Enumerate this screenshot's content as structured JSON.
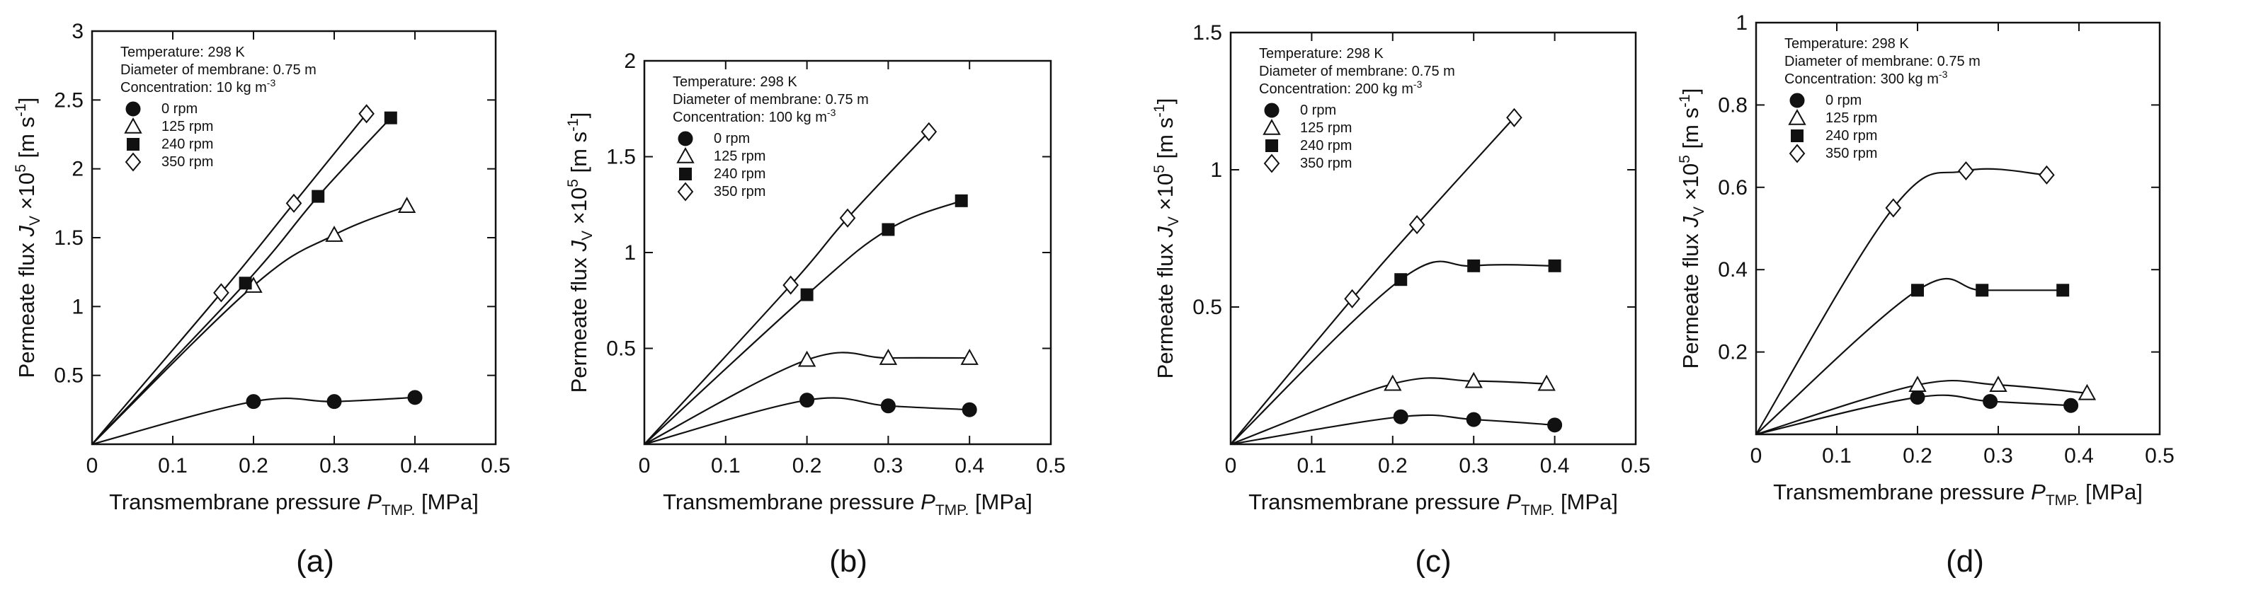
{
  "chart_data": [
    {
      "type": "line",
      "panel_label": "(a)",
      "xlabel_main": "Transmembrane pressure ",
      "xlabel_symbol": "P",
      "xlabel_sub": "TMP.",
      "xlabel_unit": " [MPa]",
      "ylabel": "Permeate flux J_V ×10^5 [m s^-1]",
      "xlim": [
        0,
        0.5
      ],
      "ylim": [
        0,
        3
      ],
      "xticks": [
        "0",
        "0.1",
        "0.2",
        "0.3",
        "0.4",
        "0.5"
      ],
      "yticks": [
        "0.5",
        "1",
        "1.5",
        "2",
        "2.5",
        "3"
      ],
      "info": {
        "temperature": "Temperature: 298 K",
        "diameter": "Diameter of membrane: 0.75 m",
        "concentration_prefix": "Concentration: 10 kg m",
        "concentration_exp": "-3"
      },
      "series": [
        {
          "name": "0 rpm",
          "marker": "filled-circle",
          "x": [
            0.2,
            0.3,
            0.4
          ],
          "y": [
            0.31,
            0.31,
            0.34
          ]
        },
        {
          "name": "125 rpm",
          "marker": "open-triangle",
          "x": [
            0.2,
            0.3,
            0.39
          ],
          "y": [
            1.15,
            1.52,
            1.73
          ]
        },
        {
          "name": "240 rpm",
          "marker": "filled-square",
          "x": [
            0.19,
            0.28,
            0.37
          ],
          "y": [
            1.17,
            1.8,
            2.37
          ]
        },
        {
          "name": "350 rpm",
          "marker": "open-diamond",
          "x": [
            0.16,
            0.25,
            0.34
          ],
          "y": [
            1.1,
            1.75,
            2.4
          ]
        }
      ]
    },
    {
      "type": "line",
      "panel_label": "(b)",
      "xlabel_main": "Transmembrane pressure ",
      "xlabel_symbol": "P",
      "xlabel_sub": "TMP.",
      "xlabel_unit": " [MPa]",
      "ylabel": "Permeate flux J_V ×10^5 [m s^-1]",
      "xlim": [
        0,
        0.5
      ],
      "ylim": [
        0,
        2
      ],
      "xticks": [
        "0",
        "0.1",
        "0.2",
        "0.3",
        "0.4",
        "0.5"
      ],
      "yticks": [
        "0.5",
        "1",
        "1.5",
        "2"
      ],
      "info": {
        "temperature": "Temperature: 298 K",
        "diameter": "Diameter of membrane: 0.75 m",
        "concentration_prefix": "Concentration: 100 kg m",
        "concentration_exp": "-3"
      },
      "series": [
        {
          "name": "0 rpm",
          "marker": "filled-circle",
          "x": [
            0.2,
            0.3,
            0.4
          ],
          "y": [
            0.23,
            0.2,
            0.18
          ]
        },
        {
          "name": "125 rpm",
          "marker": "open-triangle",
          "x": [
            0.2,
            0.3,
            0.4
          ],
          "y": [
            0.44,
            0.45,
            0.45
          ]
        },
        {
          "name": "240 rpm",
          "marker": "filled-square",
          "x": [
            0.2,
            0.3,
            0.39
          ],
          "y": [
            0.78,
            1.12,
            1.27
          ]
        },
        {
          "name": "350 rpm",
          "marker": "open-diamond",
          "x": [
            0.18,
            0.25,
            0.35
          ],
          "y": [
            0.83,
            1.18,
            1.63
          ]
        }
      ]
    },
    {
      "type": "line",
      "panel_label": "(c)",
      "xlabel_main": "Transmembrane pressure ",
      "xlabel_symbol": "P",
      "xlabel_sub": "TMP.",
      "xlabel_unit": " [MPa]",
      "ylabel": "Permeate flux J_V ×10^5 [m s^-1]",
      "xlim": [
        0,
        0.5
      ],
      "ylim": [
        0,
        1.5
      ],
      "xticks": [
        "0",
        "0.1",
        "0.2",
        "0.3",
        "0.4",
        "0.5"
      ],
      "yticks": [
        "0.5",
        "1",
        "1.5"
      ],
      "info": {
        "temperature": "Temperature: 298 K",
        "diameter": "Diameter of membrane: 0.75 m",
        "concentration_prefix": "Concentration: 200 kg m",
        "concentration_exp": "-3"
      },
      "series": [
        {
          "name": "0 rpm",
          "marker": "filled-circle",
          "x": [
            0.21,
            0.3,
            0.4
          ],
          "y": [
            0.1,
            0.09,
            0.07
          ]
        },
        {
          "name": "125 rpm",
          "marker": "open-triangle",
          "x": [
            0.2,
            0.3,
            0.39
          ],
          "y": [
            0.22,
            0.23,
            0.22
          ]
        },
        {
          "name": "240 rpm",
          "marker": "filled-square",
          "x": [
            0.21,
            0.3,
            0.4
          ],
          "y": [
            0.6,
            0.65,
            0.65
          ]
        },
        {
          "name": "350 rpm",
          "marker": "open-diamond",
          "x": [
            0.15,
            0.23,
            0.35
          ],
          "y": [
            0.53,
            0.8,
            1.19
          ]
        }
      ]
    },
    {
      "type": "line",
      "panel_label": "(d)",
      "xlabel_main": "Transmembrane pressure ",
      "xlabel_symbol": "P",
      "xlabel_sub": "TMP.",
      "xlabel_unit": " [MPa]",
      "ylabel": "Permeate flux J_V ×10^5 [m s^-1]",
      "xlim": [
        0,
        0.5
      ],
      "ylim": [
        0,
        1
      ],
      "xticks": [
        "0",
        "0.1",
        "0.2",
        "0.3",
        "0.4",
        "0.5"
      ],
      "yticks": [
        "0.2",
        "0.4",
        "0.6",
        "0.8",
        "1"
      ],
      "info": {
        "temperature": "Temperature: 298 K",
        "diameter": "Diameter of membrane: 0.75 m",
        "concentration_prefix": "Concentration: 300 kg m",
        "concentration_exp": "-3"
      },
      "series": [
        {
          "name": "0 rpm",
          "marker": "filled-circle",
          "x": [
            0.2,
            0.29,
            0.39
          ],
          "y": [
            0.09,
            0.08,
            0.07
          ]
        },
        {
          "name": "125 rpm",
          "marker": "open-triangle",
          "x": [
            0.2,
            0.3,
            0.41
          ],
          "y": [
            0.12,
            0.12,
            0.1
          ]
        },
        {
          "name": "240 rpm",
          "marker": "filled-square",
          "x": [
            0.2,
            0.28,
            0.38
          ],
          "y": [
            0.35,
            0.35,
            0.35
          ]
        },
        {
          "name": "350 rpm",
          "marker": "open-diamond",
          "x": [
            0.17,
            0.26,
            0.36
          ],
          "y": [
            0.55,
            0.64,
            0.63
          ]
        }
      ]
    }
  ]
}
